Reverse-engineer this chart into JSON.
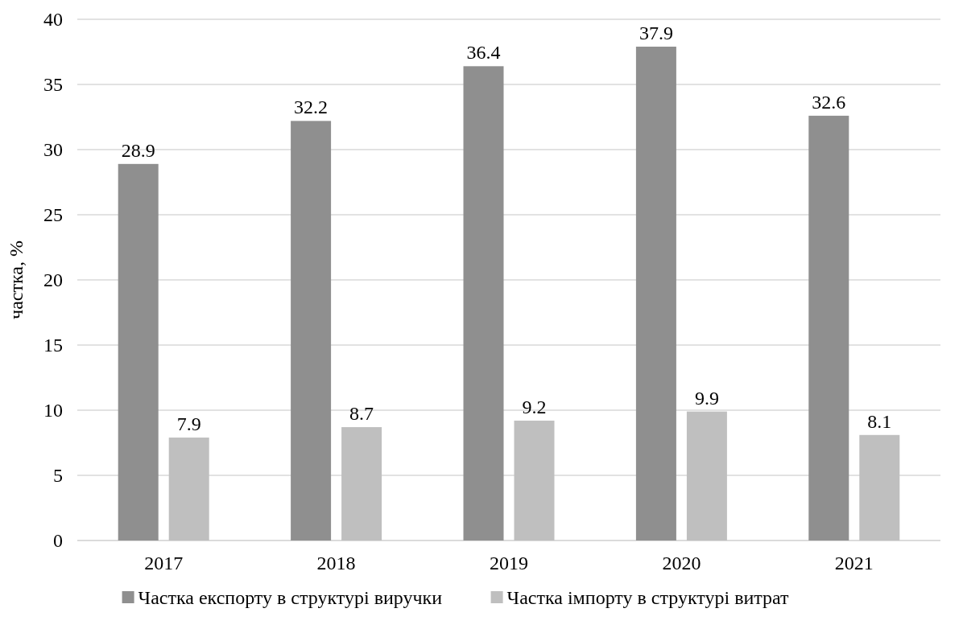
{
  "chart_data": {
    "type": "bar",
    "ylabel": "частка, %",
    "categories": [
      "2017",
      "2018",
      "2019",
      "2020",
      "2021"
    ],
    "series": [
      {
        "name": "Частка експорту в структурі виручки",
        "color": "#8f8f8f",
        "values": [
          28.9,
          32.2,
          36.4,
          37.9,
          32.6
        ]
      },
      {
        "name": "Частка імпорту в структурі витрат",
        "color": "#bfbfbf",
        "values": [
          7.9,
          8.7,
          9.2,
          9.9,
          8.1
        ]
      }
    ],
    "ylim": [
      0,
      40
    ],
    "yticks": [
      0,
      5,
      10,
      15,
      20,
      25,
      30,
      35,
      40
    ],
    "grid": "y",
    "legend": "bottom",
    "data_labels": true
  }
}
